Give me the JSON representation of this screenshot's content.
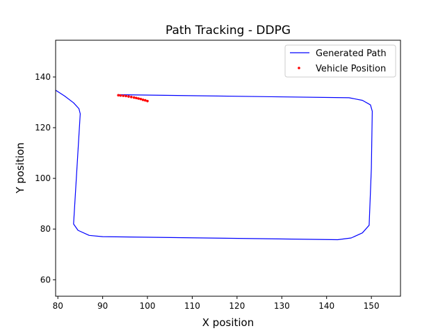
{
  "chart_data": {
    "type": "line",
    "title": "Path Tracking - DDPG",
    "xlabel": "X position",
    "ylabel": "Y position",
    "xlim": [
      79.5,
      156.5
    ],
    "ylim": [
      53.5,
      154.5
    ],
    "xticks": [
      80,
      90,
      100,
      110,
      120,
      130,
      140,
      150
    ],
    "yticks": [
      60,
      80,
      100,
      120,
      140
    ],
    "grid": false,
    "legend_position": "top-right",
    "series": [
      {
        "name": "Generated Path",
        "kind": "line",
        "color": "#0000ff",
        "x": [
          93.5,
          145.0,
          148.0,
          149.8,
          150.2,
          150.0,
          149.5,
          148.0,
          145.5,
          142.5,
          90.0,
          87.0,
          84.5,
          83.5,
          85.0,
          84.7,
          83.5,
          81.5,
          79.5
        ],
        "y": [
          133.0,
          131.8,
          130.8,
          129.0,
          126.5,
          104.0,
          81.5,
          78.5,
          76.5,
          75.8,
          77.0,
          77.5,
          79.5,
          82.0,
          125.5,
          127.5,
          129.8,
          132.5,
          134.8
        ]
      },
      {
        "name": "Vehicle Position",
        "kind": "scatter",
        "color": "#ff0000",
        "x": [
          93.5,
          94.0,
          94.6,
          95.2,
          95.8,
          96.4,
          97.0,
          97.5,
          98.0,
          98.5,
          99.0,
          99.5,
          100.0
        ],
        "y": [
          132.8,
          132.7,
          132.6,
          132.5,
          132.3,
          132.1,
          131.9,
          131.7,
          131.5,
          131.3,
          131.0,
          130.8,
          130.5
        ]
      }
    ]
  }
}
